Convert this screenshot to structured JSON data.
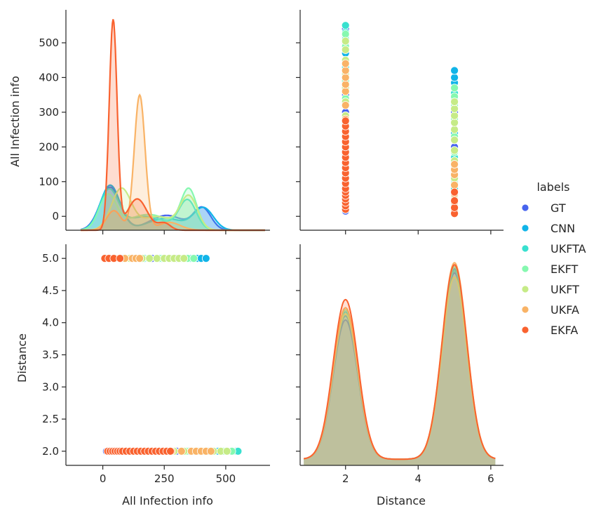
{
  "chart_data": {
    "type": "pairplot",
    "variables": [
      "All Infection info",
      "Distance"
    ],
    "legend": {
      "title": "labels",
      "placement": "center-right",
      "entries": [
        "GT",
        "CNN",
        "UKFTA",
        "EKFT",
        "UKFT",
        "UKFA",
        "EKFA"
      ]
    },
    "colors": {
      "GT": "#4764ee",
      "CNN": "#11b4e8",
      "UKFTA": "#38e0cf",
      "EKFT": "#86f8b0",
      "UKFT": "#c6eb87",
      "UKFA": "#f9b366",
      "EKFA": "#f9622f"
    },
    "axes": {
      "info": {
        "range": [
          -150,
          680
        ],
        "ticks": [
          0,
          250,
          500
        ]
      },
      "info_diag_y": {
        "range": [
          0,
          0.0128
        ]
      },
      "dist": {
        "range": [
          0.75,
          6.35
        ],
        "ticks": [
          2,
          4,
          6
        ]
      },
      "dist_y": {
        "range": [
          1.78,
          5.22
        ],
        "ticks": [
          2.0,
          2.5,
          3.0,
          3.5,
          4.0,
          4.5,
          5.0
        ]
      },
      "info_y": {
        "range": [
          -40,
          595
        ],
        "ticks": [
          0,
          100,
          200,
          300,
          400,
          500
        ]
      },
      "dist_diag_y": {
        "range": [
          0,
          1.08
        ]
      }
    },
    "scatter": {
      "GT": {
        "d2": [
          15,
          35,
          55,
          80,
          110,
          140,
          175,
          210,
          250,
          300,
          350,
          400,
          450,
          500,
          540
        ],
        "d5": [
          10,
          40,
          70,
          110,
          150,
          200,
          250,
          300,
          350,
          400
        ]
      },
      "CNN": {
        "d2": [
          20,
          40,
          60,
          90,
          120,
          150,
          190,
          230,
          270,
          320,
          370,
          420,
          470,
          520
        ],
        "d5": [
          8,
          30,
          60,
          100,
          140,
          190,
          240,
          290,
          340,
          385,
          400,
          420
        ]
      },
      "UKFTA": {
        "d2": [
          25,
          50,
          75,
          100,
          130,
          165,
          200,
          240,
          280,
          330,
          380,
          430,
          480,
          510,
          530,
          550
        ],
        "d5": [
          10,
          40,
          80,
          120,
          170,
          220,
          270,
          320,
          355
        ]
      },
      "EKFT": {
        "d2": [
          20,
          45,
          70,
          100,
          135,
          170,
          210,
          250,
          290,
          340,
          390,
          440,
          490,
          525
        ],
        "d5": [
          15,
          50,
          95,
          140,
          185,
          230,
          280,
          320,
          345,
          370
        ]
      },
      "UKFT": {
        "d2": [
          30,
          60,
          95,
          130,
          170,
          210,
          250,
          290,
          330,
          370,
          410,
          450,
          480,
          505
        ],
        "d5": [
          20,
          60,
          110,
          160,
          190,
          220,
          250,
          270,
          290,
          310,
          330
        ]
      },
      "UKFA": {
        "d2": [
          20,
          50,
          80,
          110,
          140,
          170,
          200,
          240,
          280,
          320,
          360,
          380,
          400,
          420,
          440
        ],
        "d5": [
          15,
          40,
          65,
          90,
          120,
          135,
          150
        ]
      },
      "EKFA": {
        "d2": [
          20,
          30,
          40,
          50,
          60,
          70,
          80,
          95,
          110,
          125,
          140,
          155,
          170,
          185,
          200,
          215,
          230,
          245,
          260,
          275
        ],
        "d5": [
          8,
          25,
          45,
          70
        ]
      }
    },
    "kde_info": {
      "GT": [
        [
          30,
          110,
          42
        ],
        [
          260,
          38,
          70
        ],
        [
          405,
          55,
          35
        ]
      ],
      "CNN": [
        [
          30,
          115,
          40
        ],
        [
          255,
          30,
          75
        ],
        [
          410,
          55,
          40
        ]
      ],
      "UKFTA": [
        [
          25,
          100,
          38
        ],
        [
          175,
          35,
          80
        ],
        [
          345,
          75,
          35
        ]
      ],
      "EKFT": [
        [
          20,
          85,
          35
        ],
        [
          185,
          40,
          90
        ],
        [
          350,
          100,
          32
        ]
      ],
      "UKFT": [
        [
          75,
          105,
          40
        ],
        [
          220,
          35,
          65
        ],
        [
          350,
          85,
          35
        ]
      ],
      "UKFA": [
        [
          45,
          50,
          30
        ],
        [
          150,
          345,
          22
        ],
        [
          270,
          20,
          45
        ]
      ],
      "EKFA": [
        [
          42,
          535,
          16
        ],
        [
          140,
          80,
          40
        ],
        [
          250,
          18,
          25
        ]
      ]
    },
    "kde_dist": {
      "GT": {
        "p2": 0.68,
        "p5": 0.91
      },
      "CNN": {
        "p2": 0.7,
        "p5": 0.93
      },
      "UKFTA": {
        "p2": 0.72,
        "p5": 0.92
      },
      "EKFT": {
        "p2": 0.73,
        "p5": 0.94
      },
      "UKFT": {
        "p2": 0.71,
        "p5": 0.89
      },
      "UKFA": {
        "p2": 0.74,
        "p5": 0.96
      },
      "EKFA": {
        "p2": 0.78,
        "p5": 0.95
      }
    }
  }
}
